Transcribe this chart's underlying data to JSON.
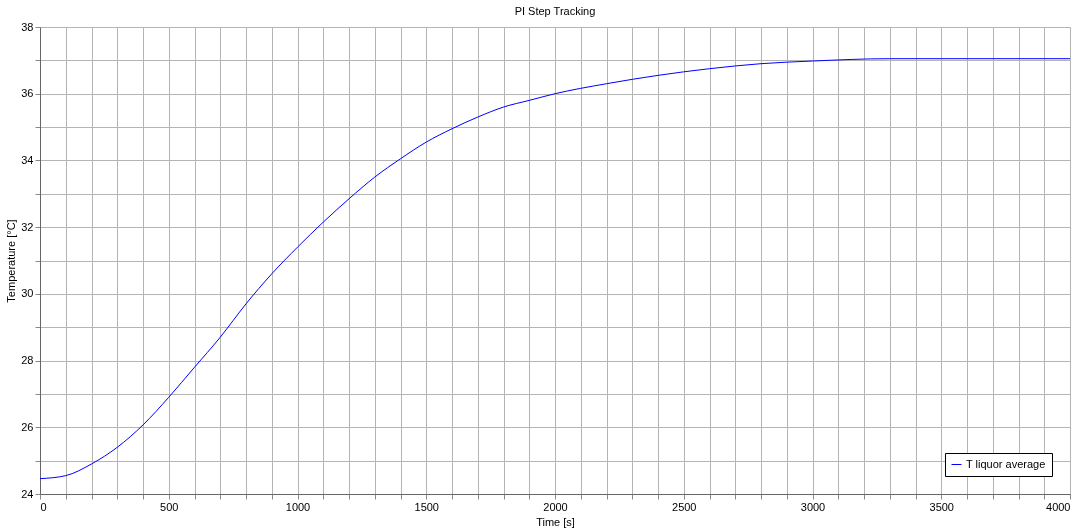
{
  "chart_data": {
    "type": "line",
    "title": "PI Step Tracking",
    "xlabel": "Time [s]",
    "ylabel": "Temperature [°C]",
    "x": [
      0,
      100,
      200,
      300,
      400,
      500,
      600,
      700,
      800,
      900,
      1000,
      1100,
      1200,
      1300,
      1400,
      1500,
      1600,
      1700,
      1800,
      1900,
      2000,
      2200,
      2400,
      2600,
      2800,
      3000,
      3300,
      3500,
      4000
    ],
    "series": [
      {
        "name": "T liquor average",
        "color": "#0000ff",
        "values": [
          24.46,
          24.55,
          24.9,
          25.4,
          26.07,
          26.9,
          27.8,
          28.7,
          29.7,
          30.6,
          31.4,
          32.15,
          32.85,
          33.5,
          34.05,
          34.55,
          34.95,
          35.3,
          35.6,
          35.8,
          36.0,
          36.3,
          36.55,
          36.75,
          36.9,
          36.98,
          37.05,
          37.05,
          37.05
        ]
      }
    ],
    "xlim": [
      0,
      4000
    ],
    "xticks": [
      0,
      {
        "value": 100,
        "label": null
      },
      {
        "value": 200,
        "label": null
      },
      {
        "value": 300,
        "label": null
      },
      {
        "value": 400,
        "label": null
      },
      500,
      {
        "value": 600,
        "label": null
      },
      {
        "value": 700,
        "label": null
      },
      {
        "value": 800,
        "label": null
      },
      {
        "value": 900,
        "label": null
      },
      1000,
      {
        "value": 1100,
        "label": null
      },
      {
        "value": 1200,
        "label": null
      },
      {
        "value": 1300,
        "label": null
      },
      {
        "value": 1400,
        "label": null
      },
      1500,
      {
        "value": 1600,
        "label": null
      },
      {
        "value": 1700,
        "label": null
      },
      {
        "value": 1800,
        "label": null
      },
      {
        "value": 1900,
        "label": null
      },
      2000,
      {
        "value": 2100,
        "label": null
      },
      {
        "value": 2200,
        "label": null
      },
      {
        "value": 2300,
        "label": null
      },
      {
        "value": 2400,
        "label": null
      },
      2500,
      {
        "value": 2600,
        "label": null
      },
      {
        "value": 2700,
        "label": null
      },
      {
        "value": 2800,
        "label": null
      },
      {
        "value": 2900,
        "label": null
      },
      3000,
      {
        "value": 3100,
        "label": null
      },
      {
        "value": 3200,
        "label": null
      },
      {
        "value": 3300,
        "label": null
      },
      {
        "value": 3400,
        "label": null
      },
      3500,
      {
        "value": 3600,
        "label": null
      },
      {
        "value": 3700,
        "label": null
      },
      {
        "value": 3800,
        "label": null
      },
      {
        "value": 3900,
        "label": null
      },
      4000
    ],
    "ylim": [
      24,
      38
    ],
    "yticks": [
      24,
      {
        "value": 25,
        "label": null
      },
      26,
      {
        "value": 27,
        "label": null
      },
      28,
      {
        "value": 29,
        "label": null
      },
      30,
      {
        "value": 31,
        "label": null
      },
      32,
      {
        "value": 33,
        "label": null
      },
      34,
      {
        "value": 35,
        "label": null
      },
      36,
      {
        "value": 37,
        "label": null
      },
      38
    ],
    "grid": true,
    "legend": "bottom right",
    "marker": "none",
    "line_style": "solid"
  }
}
